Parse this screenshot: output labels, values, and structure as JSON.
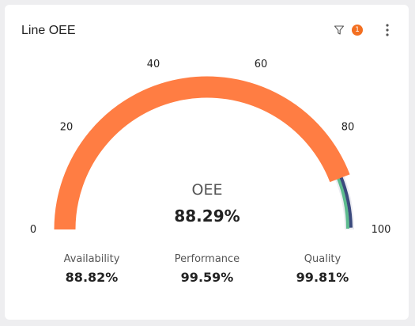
{
  "widget": {
    "title": "Line OEE",
    "filter_count": "1",
    "filter_icon": "filter-icon",
    "menu_icon": "more-vertical-icon"
  },
  "chart_data": {
    "type": "gauge",
    "min": 0,
    "max": 100,
    "ticks": [
      "0",
      "20",
      "40",
      "60",
      "80",
      "100"
    ],
    "center_label": "OEE",
    "center_value": "88.29%",
    "value": 88.29,
    "series": [
      {
        "value": 88.29
      },
      {
        "value": 99.59
      },
      {
        "value": 99.81
      }
    ],
    "metrics": [
      {
        "label": "Availability",
        "value": "88.82%"
      },
      {
        "label": "Performance",
        "value": "99.59%"
      },
      {
        "label": "Quality",
        "value": "99.81%"
      }
    ]
  },
  "colors": {
    "primary": "#ff7d43",
    "secondary": "#3b4a7d",
    "tertiary": "#5dbb8e",
    "track": "#ececf2",
    "badge": "#f36f21"
  }
}
